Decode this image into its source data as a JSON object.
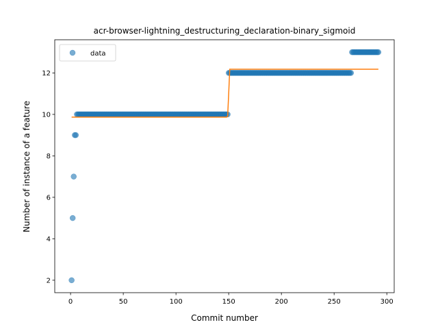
{
  "chart_data": {
    "type": "scatter",
    "title": "acr-browser-lightning_destructuring_declaration-binary_sigmoid",
    "xlabel": "Commit number",
    "ylabel": "Number of instance of a feature",
    "xlim": [
      -15,
      307
    ],
    "ylim": [
      1.4,
      13.6
    ],
    "x_ticks": [
      0,
      50,
      100,
      150,
      200,
      250,
      300
    ],
    "y_ticks": [
      2,
      4,
      6,
      8,
      10,
      12
    ],
    "legend": {
      "placement": "upper-left",
      "entries": [
        "data"
      ]
    },
    "colors": {
      "data": "#1f77b4",
      "fit": "#ff7f0e"
    },
    "series": [
      {
        "name": "data",
        "kind": "scatter",
        "segments": [
          {
            "x": [
              1
            ],
            "y": 2
          },
          {
            "x": [
              2
            ],
            "y": 5
          },
          {
            "x": [
              3
            ],
            "y": 7
          },
          {
            "x": [
              4,
              5
            ],
            "y": 9
          },
          {
            "x_range": [
              6,
              149
            ],
            "y": 10
          },
          {
            "x_range": [
              150,
              266
            ],
            "y": 12
          },
          {
            "x_range": [
              267,
              292
            ],
            "y": 13
          }
        ]
      },
      {
        "kind": "line",
        "x": [
          1,
          148,
          149,
          150,
          151,
          292
        ],
        "y": [
          9.87,
          9.87,
          9.9,
          11.0,
          12.18,
          12.18
        ]
      }
    ]
  }
}
